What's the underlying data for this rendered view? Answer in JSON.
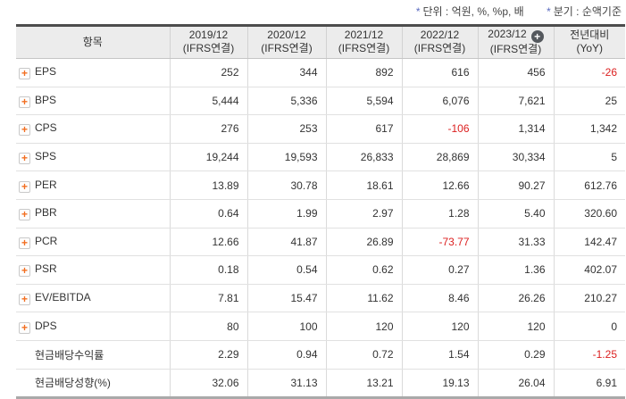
{
  "annotations": {
    "unit": {
      "star": "*",
      "text": "단위 : 억원, %, %p, 배"
    },
    "basis": {
      "star": "*",
      "text": "분기 : 순액기준"
    }
  },
  "icons": {
    "expand_plus": "+",
    "header_add": "+"
  },
  "colors": {
    "negative": "#dc1f1f",
    "accent_orange": "#f26f21",
    "header_bg": "#ececec",
    "star_blue": "#5a6bc0",
    "add_circle_bg": "#54585d"
  },
  "table": {
    "item_header": "항목",
    "columns": [
      {
        "period": "2019/12",
        "basis": "(IFRS연결)"
      },
      {
        "period": "2020/12",
        "basis": "(IFRS연결)"
      },
      {
        "period": "2021/12",
        "basis": "(IFRS연결)"
      },
      {
        "period": "2022/12",
        "basis": "(IFRS연결)"
      },
      {
        "period": "2023/12",
        "basis": "(IFRS연결)",
        "has_add_icon": true
      },
      {
        "period": "전년대비",
        "basis": "(YoY)"
      }
    ],
    "rows": [
      {
        "label": "EPS",
        "expandable": true,
        "values": [
          "252",
          "344",
          "892",
          "616",
          "456",
          "-26"
        ]
      },
      {
        "label": "BPS",
        "expandable": true,
        "values": [
          "5,444",
          "5,336",
          "5,594",
          "6,076",
          "7,621",
          "25"
        ]
      },
      {
        "label": "CPS",
        "expandable": true,
        "values": [
          "276",
          "253",
          "617",
          "-106",
          "1,314",
          "1,342"
        ]
      },
      {
        "label": "SPS",
        "expandable": true,
        "values": [
          "19,244",
          "19,593",
          "26,833",
          "28,869",
          "30,334",
          "5"
        ]
      },
      {
        "label": "PER",
        "expandable": true,
        "values": [
          "13.89",
          "30.78",
          "18.61",
          "12.66",
          "90.27",
          "612.76"
        ]
      },
      {
        "label": "PBR",
        "expandable": true,
        "values": [
          "0.64",
          "1.99",
          "2.97",
          "1.28",
          "5.40",
          "320.60"
        ]
      },
      {
        "label": "PCR",
        "expandable": true,
        "values": [
          "12.66",
          "41.87",
          "26.89",
          "-73.77",
          "31.33",
          "142.47"
        ]
      },
      {
        "label": "PSR",
        "expandable": true,
        "values": [
          "0.18",
          "0.54",
          "0.62",
          "0.27",
          "1.36",
          "402.07"
        ]
      },
      {
        "label": "EV/EBITDA",
        "expandable": true,
        "values": [
          "7.81",
          "15.47",
          "11.62",
          "8.46",
          "26.26",
          "210.27"
        ]
      },
      {
        "label": "DPS",
        "expandable": true,
        "values": [
          "80",
          "100",
          "120",
          "120",
          "120",
          "0"
        ]
      },
      {
        "label": "현금배당수익률",
        "expandable": false,
        "values": [
          "2.29",
          "0.94",
          "0.72",
          "1.54",
          "0.29",
          "-1.25"
        ]
      },
      {
        "label": "현금배당성향(%)",
        "expandable": false,
        "values": [
          "32.06",
          "31.13",
          "13.21",
          "19.13",
          "26.04",
          "6.91"
        ]
      }
    ]
  }
}
